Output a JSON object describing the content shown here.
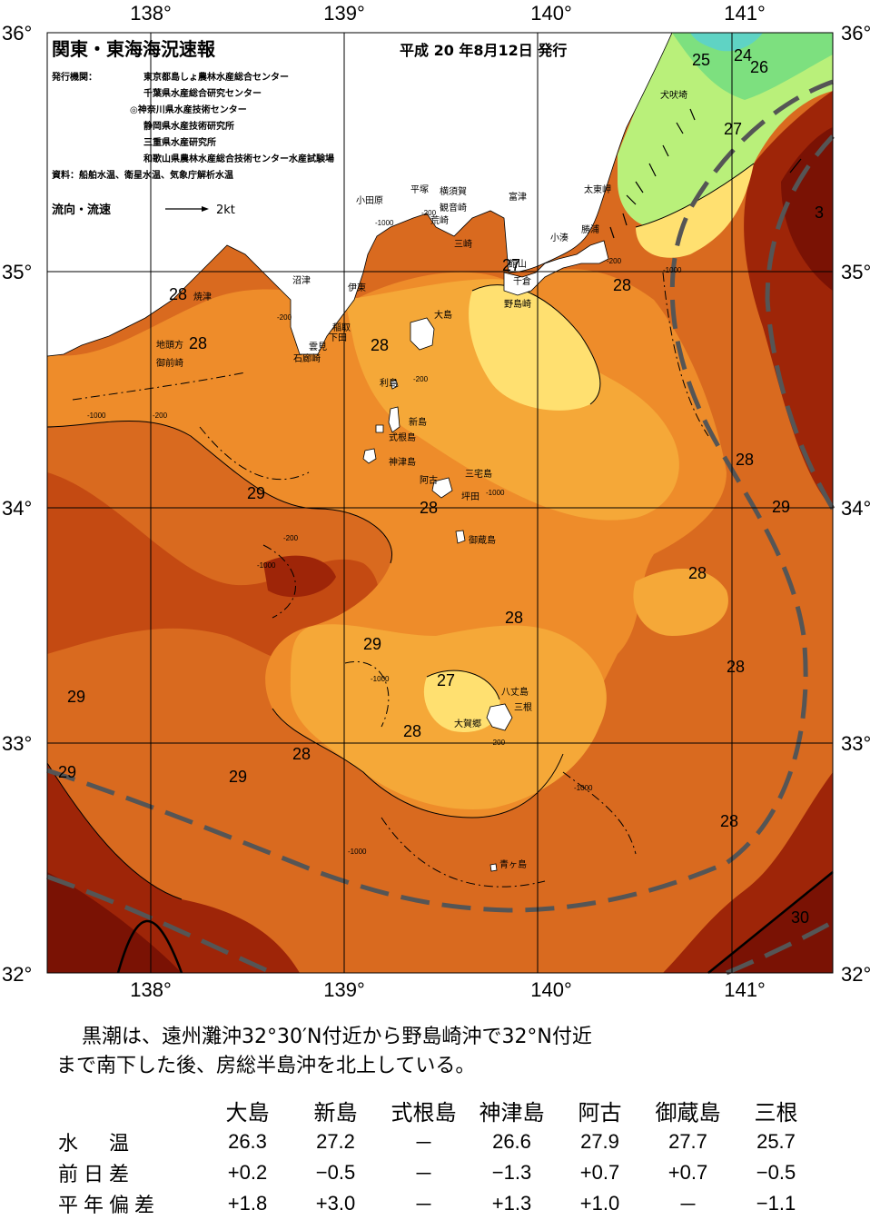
{
  "header": {
    "title": "関東・東海海況速報",
    "issued": "平成 20 年8月12日 発行",
    "agency_label": "発行機関：",
    "agencies": [
      "東京都島しょ農林水産総合センター",
      "千葉県水産総合研究センター",
      "◎神奈川県水産技術センター",
      "静岡県水産技術研究所",
      "三重県水産研究所",
      "和歌山県農林水産総合技術センター水産試験場"
    ],
    "sources": "資料：船舶水温、衛星水温、気象庁解析水温",
    "flow_legend": "流向・流速",
    "flow_speed": "2kt"
  },
  "axes": {
    "lon_labels": [
      "138°",
      "139°",
      "140°",
      "141°"
    ],
    "lat_labels": [
      "36°",
      "35°",
      "34°",
      "33°",
      "32°"
    ]
  },
  "place_names": [
    "小田原",
    "平塚",
    "横須賀",
    "観音崎",
    "荒崎",
    "三崎",
    "富津",
    "太東岬",
    "勝浦",
    "小湊",
    "館山",
    "千倉",
    "野島崎",
    "犬吠埼",
    "沼津",
    "伊東",
    "稲取",
    "下田",
    "雲見",
    "石廊崎",
    "焼津",
    "地頭方",
    "御前崎",
    "大島",
    "利島",
    "新島",
    "式根島",
    "神津島",
    "三宅島",
    "阿古",
    "坪田",
    "御蔵島",
    "八丈島",
    "三根",
    "大賀郷",
    "青ヶ島"
  ],
  "isotherm_labels": [
    "25",
    "24",
    "26",
    "27",
    "28",
    "28",
    "28",
    "28",
    "28",
    "28",
    "28",
    "28",
    "28",
    "28",
    "28",
    "28",
    "29",
    "29",
    "29",
    "29",
    "29",
    "29",
    "27",
    "27",
    "30",
    "3"
  ],
  "depth_labels": [
    "-200",
    "-1000"
  ],
  "colors": {
    "t24": "#5fd3c4",
    "t25": "#7de07f",
    "t26": "#b9f07a",
    "t27": "#ffe070",
    "t28": "#f5a838",
    "t28b": "#ee8c2a",
    "t29": "#d96a1f",
    "t29b": "#c44a12",
    "t30": "#9e2508",
    "t31": "#7a1204",
    "kuroshio": "#555555",
    "land": "#ffffff"
  },
  "summary": {
    "line1": "黒潮は、遠州灘沖32°30′N付近から野島崎沖で32°N付近",
    "line2": "まで南下した後、房総半島沖を北上している。"
  },
  "table": {
    "columns": [
      "大島",
      "新島",
      "式根島",
      "神津島",
      "阿古",
      "御蔵島",
      "三根"
    ],
    "rows": [
      {
        "label": "水　温",
        "values": [
          "26.3",
          "27.2",
          "－",
          "26.6",
          "27.9",
          "27.7",
          "25.7"
        ]
      },
      {
        "label": "前日差",
        "values": [
          "+0.2",
          "−0.5",
          "－",
          "−1.3",
          "+0.7",
          "+0.7",
          "−0.5"
        ]
      },
      {
        "label": "平年偏差",
        "values": [
          "+1.8",
          "+3.0",
          "－",
          "+1.3",
          "+1.0",
          "－",
          "−1.1"
        ]
      }
    ]
  }
}
